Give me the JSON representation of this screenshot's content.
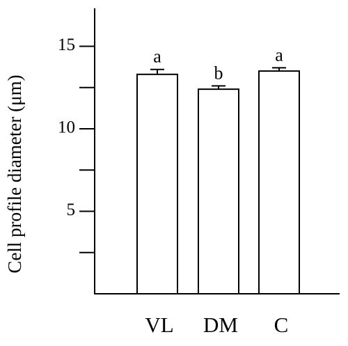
{
  "chart_data": {
    "type": "bar",
    "y_label": "Cell profile diameter (μm)",
    "categories": [
      "VL",
      "DM",
      "C"
    ],
    "values": [
      13.3,
      12.4,
      13.5
    ],
    "errors": [
      0.3,
      0.2,
      0.2
    ],
    "annotations": [
      "a",
      "b",
      "a"
    ],
    "color": "#ffffff",
    "ylim": [
      0,
      17.3
    ],
    "yticks": [
      5,
      10,
      15
    ],
    "minor_yticks": [
      2.5,
      7.5,
      12.5
    ],
    "grid": false
  }
}
